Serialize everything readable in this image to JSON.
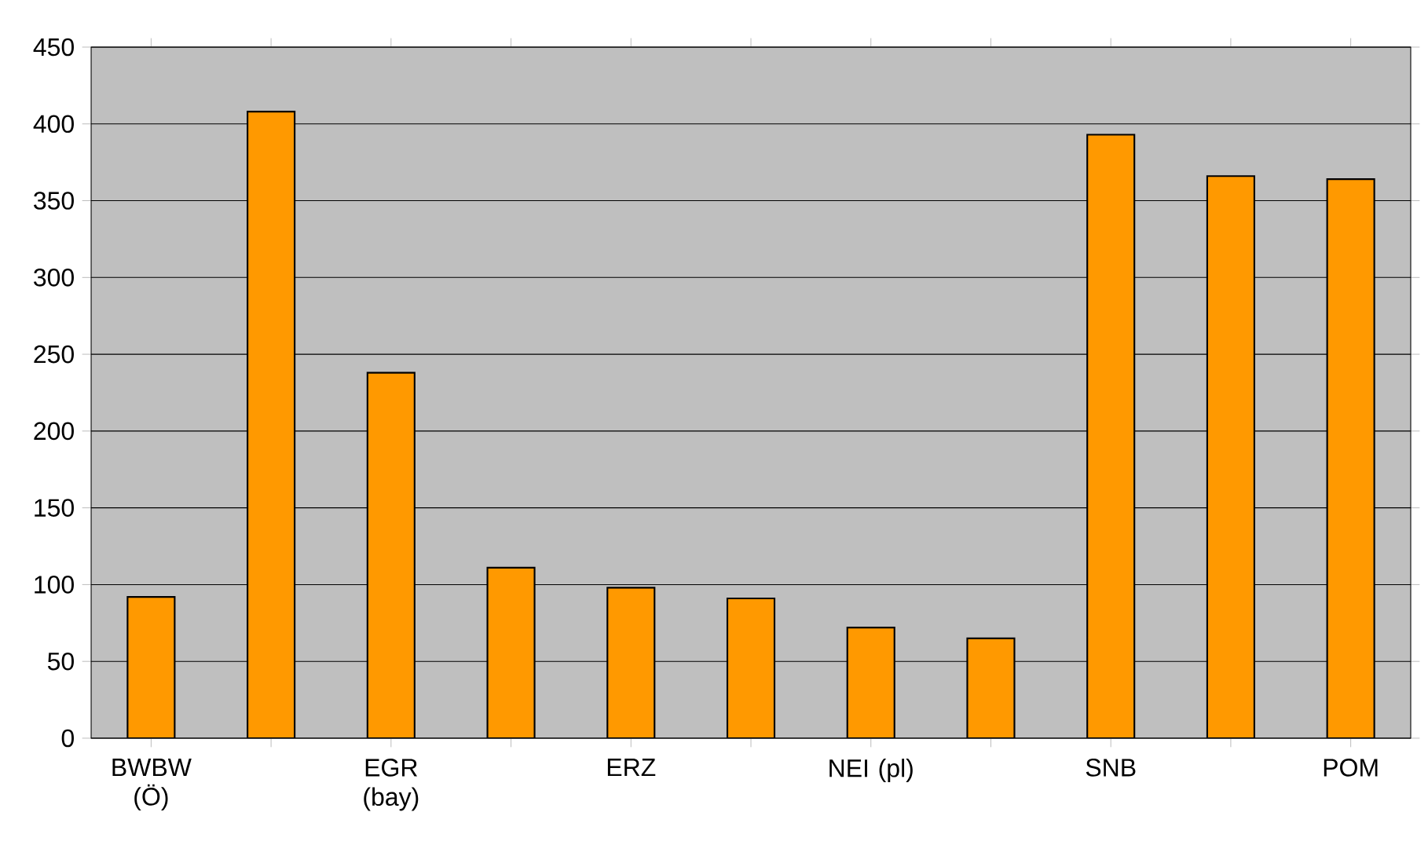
{
  "chart_data": {
    "type": "bar",
    "categories": [
      "BWBW (Ö)",
      null,
      "EGR (bay)",
      null,
      "ERZ",
      null,
      "NEI (pl)",
      null,
      "SNB",
      null,
      "POM"
    ],
    "values": [
      92,
      408,
      238,
      111,
      98,
      91,
      72,
      65,
      393,
      366,
      364
    ],
    "color": "#ff9900",
    "ylim": [
      0,
      450
    ],
    "yticks": [
      0,
      50,
      100,
      150,
      200,
      250,
      300,
      350,
      400,
      450
    ],
    "grid": "y"
  }
}
